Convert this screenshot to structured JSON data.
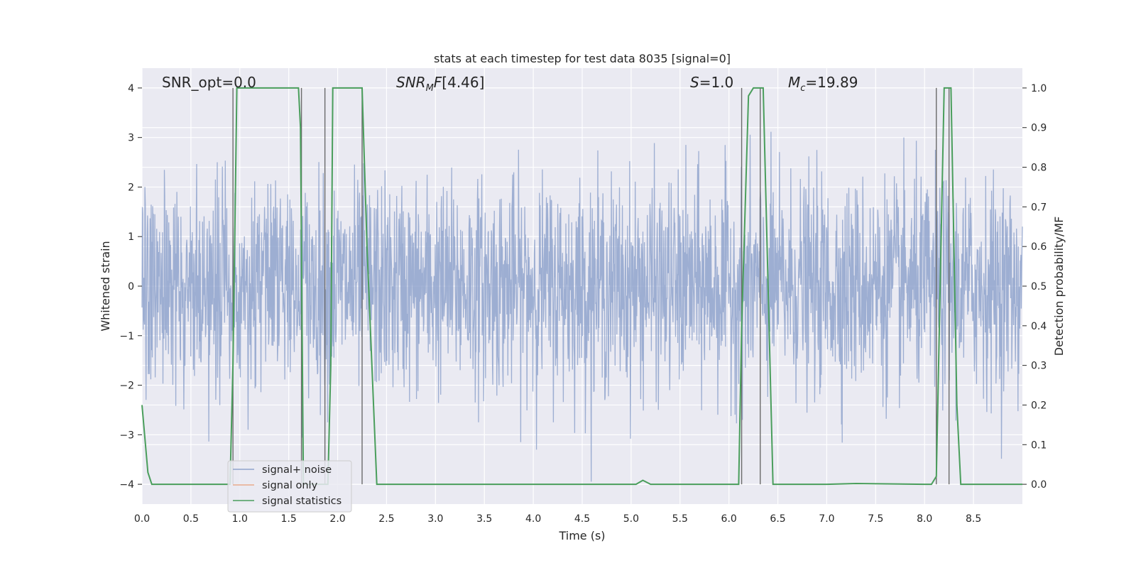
{
  "chart_data": {
    "type": "line",
    "title": "stats at each timestep for test data 8035 [signal=0]",
    "xlabel": "Time (s)",
    "ylabel": "Whitened strain",
    "y2label": "Detection probability/MF",
    "xlim": [
      0.0,
      9.0
    ],
    "ylim": [
      -4.4,
      4.4
    ],
    "y2lim": [
      -0.05,
      1.05
    ],
    "xticks": [
      "0.0",
      "0.5",
      "1.0",
      "1.5",
      "2.0",
      "2.5",
      "3.0",
      "3.5",
      "4.0",
      "4.5",
      "5.0",
      "5.5",
      "6.0",
      "6.5",
      "7.0",
      "7.5",
      "8.0",
      "8.5"
    ],
    "yticks": [
      "−4",
      "−3",
      "−2",
      "−1",
      "0",
      "1",
      "2",
      "3",
      "4"
    ],
    "y2ticks": [
      "0.0",
      "0.1",
      "0.2",
      "0.3",
      "0.4",
      "0.5",
      "0.6",
      "0.7",
      "0.8",
      "0.9",
      "1.0"
    ],
    "grid": true,
    "legend_placement": "lower-left",
    "annotations": {
      "snr_opt": "SNR_opt=0.0",
      "snr_mf": "[4.46]",
      "stat": "=1.0",
      "mc": "=19.89"
    },
    "series": [
      {
        "name": "signal+ noise",
        "color": "#8fa3cc",
        "description_range": [
          -4.0,
          4.0
        ]
      },
      {
        "name": "signal only",
        "color": "#e8a98b",
        "values": []
      },
      {
        "name": "signal statistics",
        "color": "#4a9e5c",
        "x": [
          0.0,
          0.06,
          0.1,
          0.12,
          0.5,
          0.9,
          0.93,
          0.97,
          1.0,
          1.2,
          1.3,
          1.6,
          1.62,
          1.65,
          1.9,
          1.93,
          1.95,
          2.0,
          2.25,
          2.3,
          2.4,
          3.0,
          4.0,
          4.8,
          5.05,
          5.12,
          5.2,
          5.5,
          6.1,
          6.13,
          6.2,
          6.25,
          6.35,
          6.45,
          7.0,
          7.3,
          8.0,
          8.07,
          8.12,
          8.2,
          8.27,
          8.33,
          8.37,
          9.0
        ],
        "y": [
          0.2,
          0.03,
          0.0,
          0.0,
          0.0,
          0.0,
          0.3,
          1.0,
          1.0,
          1.0,
          1.0,
          1.0,
          0.9,
          0.0,
          0.0,
          0.3,
          1.0,
          1.0,
          1.0,
          0.6,
          0.0,
          0.0,
          0.0,
          0.0,
          0.0,
          0.01,
          0.0,
          0.0,
          0.0,
          0.4,
          0.98,
          1.0,
          1.0,
          0.0,
          0.0,
          0.002,
          0.0,
          0.0,
          0.02,
          1.0,
          1.0,
          0.2,
          0.0,
          0.0
        ]
      }
    ],
    "vertical_lines": [
      0.93,
      1.63,
      1.87,
      2.25,
      6.13,
      6.32,
      8.12,
      8.25
    ],
    "colors": {
      "plot_bg": "#eaeaf2",
      "grid": "#ffffff",
      "vline": "#6b6b6b"
    }
  },
  "legend": {
    "items": [
      "signal+ noise",
      "signal only",
      "signal statistics"
    ]
  }
}
